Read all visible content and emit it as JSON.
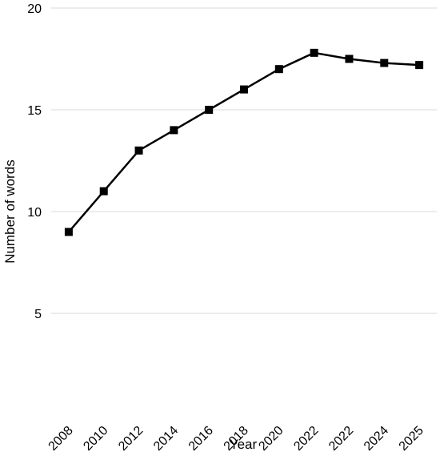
{
  "chart_data": {
    "type": "line",
    "categories": [
      "2008",
      "2010",
      "2012",
      "2014",
      "2016",
      "2018",
      "2020",
      "2022",
      "2022",
      "2024",
      "2025"
    ],
    "series": [
      {
        "values": [
          9,
          11,
          13,
          14,
          15,
          16,
          17,
          17.8,
          17.5,
          17.3,
          17.2
        ]
      }
    ],
    "xlabel": "Year",
    "ylabel": "Number of words",
    "ylim": [
      0,
      20
    ],
    "yticks": [
      "5",
      "10",
      "15",
      "20"
    ],
    "grid": true,
    "legend": "none",
    "colors": {
      "line": "#000000",
      "grid": "#d9d9d9"
    }
  }
}
